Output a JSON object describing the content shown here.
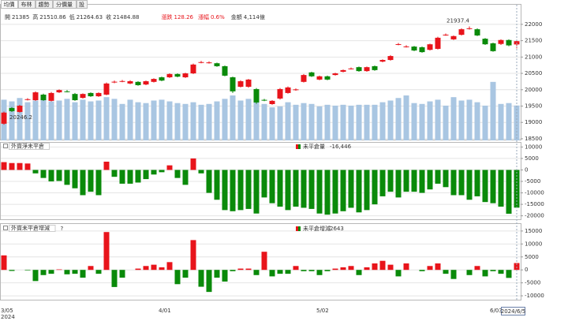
{
  "header": {
    "tabs": [
      "均價",
      "布林",
      "趨勢",
      "分價量",
      "設"
    ],
    "quote": [
      {
        "label": "開",
        "value": "21385"
      },
      {
        "label": "高",
        "value": "21510.86"
      },
      {
        "label": "低",
        "value": "21264.63"
      },
      {
        "label": "收",
        "value": "21484.88"
      }
    ],
    "change": [
      {
        "label": "漲跌",
        "value": "128.26"
      },
      {
        "label": "漲幅",
        "value": "0.6%"
      }
    ],
    "amount": {
      "label": "金額",
      "value": "4,114億"
    }
  },
  "chart_data": [
    {
      "type": "candlestick",
      "up_color": "#e8141b",
      "down_color": "#0a8a0a",
      "volume_color": "#a9c6e2",
      "ylim": [
        18450,
        22600
      ],
      "yticks": [
        22000,
        21500,
        21000,
        20500,
        20000,
        19500,
        19000,
        18500
      ],
      "grid": true,
      "vlim": [
        0,
        16000
      ],
      "low_label": "20246.2",
      "open": [
        18960,
        19440,
        19320,
        19700,
        19680,
        19850,
        19660,
        19920,
        19950,
        19870,
        19750,
        19900,
        19800,
        19850,
        20240,
        20260,
        20190,
        20240,
        20160,
        20240,
        20380,
        20380,
        20480,
        20380,
        20500,
        20840,
        20830,
        20810,
        20720,
        20380,
        20090,
        20090,
        20020,
        19690,
        19560,
        19730,
        19900,
        20000,
        20240,
        20530,
        20310,
        20410,
        20450,
        20550,
        20645,
        20690,
        20570,
        20720,
        20860,
        20910,
        21390,
        21320,
        21320,
        21300,
        21220,
        21250,
        21680,
        21540,
        21680,
        21870,
        21850,
        21560,
        21420,
        21400,
        21520,
        21385
      ],
      "high": [
        19330,
        19470,
        19540,
        19740,
        19950,
        19880,
        19930,
        20010,
        19990,
        19900,
        19890,
        19920,
        19920,
        20220,
        20280,
        20300,
        20290,
        20260,
        20280,
        20350,
        20400,
        20500,
        20500,
        20520,
        20800,
        20880,
        20870,
        20830,
        20740,
        20400,
        20290,
        20330,
        20050,
        19720,
        19680,
        20050,
        20100,
        20040,
        20480,
        20550,
        20430,
        20430,
        20520,
        20620,
        20680,
        20710,
        20710,
        20740,
        20930,
        21060,
        21430,
        21360,
        21340,
        21320,
        21410,
        21620,
        21720,
        21660,
        21880,
        21937.4,
        21880,
        21580,
        21440,
        21540,
        21540,
        21510.86
      ],
      "low": [
        18930,
        19320,
        19300,
        19670,
        19660,
        19660,
        19640,
        19900,
        19920,
        19660,
        19730,
        19780,
        19780,
        19830,
        20200,
        20230,
        20170,
        20120,
        20140,
        20220,
        20260,
        20360,
        20380,
        20360,
        20480,
        20810,
        20800,
        20700,
        20410,
        19900,
        20070,
        20060,
        19570,
        19650,
        19540,
        19700,
        19880,
        19970,
        20220,
        20390,
        20290,
        20290,
        20430,
        20530,
        20620,
        20550,
        20550,
        20580,
        20840,
        20890,
        21360,
        21290,
        21180,
        21130,
        21200,
        21230,
        21650,
        21520,
        21660,
        21840,
        21640,
        21370,
        21160,
        21370,
        21330,
        21264.63
      ],
      "close": [
        19300,
        19345,
        19510,
        19710,
        19920,
        19680,
        19900,
        19990,
        19945,
        19680,
        19870,
        19800,
        19900,
        20190,
        20245,
        20265,
        20260,
        20140,
        20260,
        20330,
        20280,
        20480,
        20400,
        20500,
        20770,
        20845,
        20835,
        20720,
        20430,
        19950,
        20260,
        20310,
        19610,
        19685,
        19660,
        20020,
        20070,
        20010,
        20450,
        20410,
        20410,
        20310,
        20500,
        20600,
        20650,
        20570,
        20690,
        20600,
        20910,
        21030,
        21395,
        21325,
        21200,
        21150,
        21390,
        21590,
        21685,
        21640,
        21850,
        21880,
        21660,
        21390,
        21180,
        21520,
        21356.62,
        21484.88
      ],
      "volume": [
        4800,
        4600,
        5000,
        4500,
        4700,
        5200,
        4600,
        4700,
        4900,
        4500,
        4800,
        4600,
        4700,
        5100,
        4900,
        4300,
        4800,
        4500,
        4400,
        4700,
        4800,
        4600,
        4400,
        4300,
        4500,
        4200,
        4300,
        4600,
        4900,
        5300,
        4700,
        4900,
        5000,
        4300,
        3900,
        4000,
        4500,
        4200,
        4400,
        4300,
        4000,
        4200,
        4100,
        4200,
        4100,
        4200,
        4200,
        4200,
        4500,
        4700,
        5000,
        5300,
        4400,
        4300,
        4600,
        4800,
        4100,
        5100,
        4700,
        4800,
        4500,
        4100,
        6900,
        4300,
        4400,
        4114
      ]
    },
    {
      "type": "bar",
      "title": "外資淨未平倉",
      "up_color": "#e8141b",
      "down_color": "#0a8a0a",
      "ylim": [
        -21500,
        11500
      ],
      "yticks": [
        10000,
        5000,
        0,
        -5000,
        -10000,
        -15000,
        -20000
      ],
      "grid": true,
      "series": [
        {
          "name": "未平倉量",
          "values": [
            3400,
            3000,
            3000,
            2800,
            -1500,
            -3500,
            -5000,
            -4800,
            -6500,
            -8000,
            -11000,
            -9500,
            -11000,
            3600,
            -3000,
            -6000,
            -6000,
            -5500,
            -4000,
            -2000,
            -1000,
            2000,
            -3500,
            -6500,
            5000,
            -1500,
            -10000,
            -13000,
            -17500,
            -18000,
            -17500,
            -17000,
            -19000,
            -12000,
            -14500,
            -16000,
            -17500,
            -16000,
            -16500,
            -17000,
            -19000,
            -19500,
            -19000,
            -18000,
            -16500,
            -18500,
            -17500,
            -15000,
            -11500,
            -9500,
            -12000,
            -9500,
            -9500,
            -10000,
            -8500,
            -6000,
            -7500,
            -11000,
            -11000,
            -13000,
            -11500,
            -14000,
            -14500,
            -16000,
            -19089,
            -16446
          ],
          "value_labels": [
            null,
            null,
            null,
            null,
            null,
            null,
            null,
            null,
            null,
            null,
            null,
            null,
            null,
            null,
            null,
            null,
            null,
            null,
            null,
            null,
            null,
            null,
            null,
            null,
            null,
            null,
            null,
            null,
            null,
            null,
            null,
            null,
            null,
            null,
            null,
            null,
            null,
            null,
            null,
            null,
            null,
            null,
            null,
            null,
            null,
            null,
            null,
            null,
            null,
            null,
            null,
            null,
            null,
            null,
            null,
            null,
            null,
            null,
            null,
            null,
            null,
            null,
            null,
            null,
            null,
            "-16,446"
          ]
        }
      ]
    },
    {
      "type": "bar",
      "title": "外資未平倉增減",
      "help": "?",
      "up_color": "#e8141b",
      "down_color": "#0a8a0a",
      "ylim": [
        -11500,
        17100
      ],
      "yticks": [
        15000,
        10000,
        5000,
        0,
        -5000,
        -10000
      ],
      "grid": true,
      "categories": [
        "3/05",
        null,
        null,
        null,
        null,
        null,
        null,
        null,
        null,
        null,
        null,
        null,
        null,
        null,
        null,
        null,
        null,
        null,
        null,
        null,
        "4/01",
        null,
        null,
        null,
        null,
        null,
        null,
        null,
        null,
        null,
        null,
        null,
        null,
        null,
        null,
        null,
        null,
        null,
        null,
        null,
        "5/02",
        null,
        null,
        null,
        null,
        null,
        null,
        null,
        null,
        null,
        null,
        null,
        null,
        null,
        null,
        null,
        null,
        null,
        null,
        null,
        null,
        null,
        "6/03",
        null,
        null,
        null
      ],
      "x_sub_label": "2024",
      "cursor_label": "2024/6/5",
      "series": [
        {
          "name": "未平倉增減",
          "values": [
            5600,
            -400,
            0,
            -200,
            -4300,
            -2000,
            -1500,
            200,
            -1700,
            -1500,
            -3000,
            1500,
            -1500,
            14600,
            -6600,
            -3000,
            0,
            500,
            1500,
            2000,
            1000,
            3000,
            -5500,
            -3000,
            11500,
            -6500,
            -8500,
            -3000,
            -4500,
            -500,
            500,
            500,
            -2000,
            7000,
            -2500,
            -1500,
            -1500,
            1500,
            -500,
            -500,
            -2000,
            -500,
            500,
            1000,
            1500,
            -2000,
            1000,
            2500,
            3500,
            2000,
            -2500,
            2500,
            0,
            -500,
            1500,
            2500,
            -1500,
            -3500,
            0,
            -2000,
            1500,
            -2500,
            -500,
            -1500,
            -3089,
            2643
          ]
        }
      ]
    }
  ]
}
